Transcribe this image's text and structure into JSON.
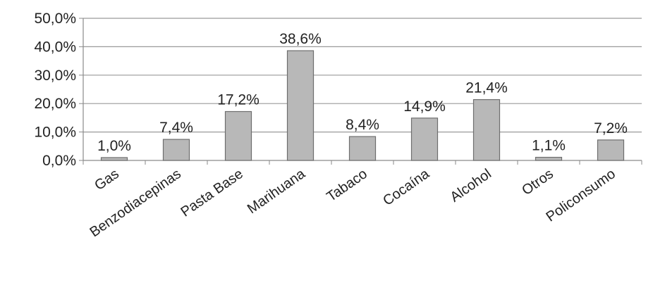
{
  "chart_data": {
    "type": "bar",
    "title": "",
    "xlabel": "",
    "ylabel": "",
    "categories": [
      "Gas",
      "Benzodiacepinas",
      "Pasta Base",
      "Marihuana",
      "Tabaco",
      "Cocaína",
      "Alcohol",
      "Otros",
      "Policonsumo"
    ],
    "values": [
      1.0,
      7.4,
      17.2,
      38.6,
      8.4,
      14.9,
      21.4,
      1.1,
      7.2
    ],
    "data_labels": [
      "1,0%",
      "7,4%",
      "17,2%",
      "38,6%",
      "8,4%",
      "14,9%",
      "21,4%",
      "1,1%",
      "7,2%"
    ],
    "y_ticks": [
      0,
      10,
      20,
      30,
      40,
      50
    ],
    "y_tick_labels": [
      "0,0%",
      "10,0%",
      "20,0%",
      "30,0%",
      "40,0%",
      "50,0%"
    ],
    "ylim": [
      0,
      50
    ],
    "grid": true,
    "legend": "none",
    "colors": {
      "bar_fill": "#b8b8b8",
      "bar_stroke": "#6e6e6e",
      "grid": "#9a9a9a",
      "axis": "#8a8a8a"
    }
  }
}
